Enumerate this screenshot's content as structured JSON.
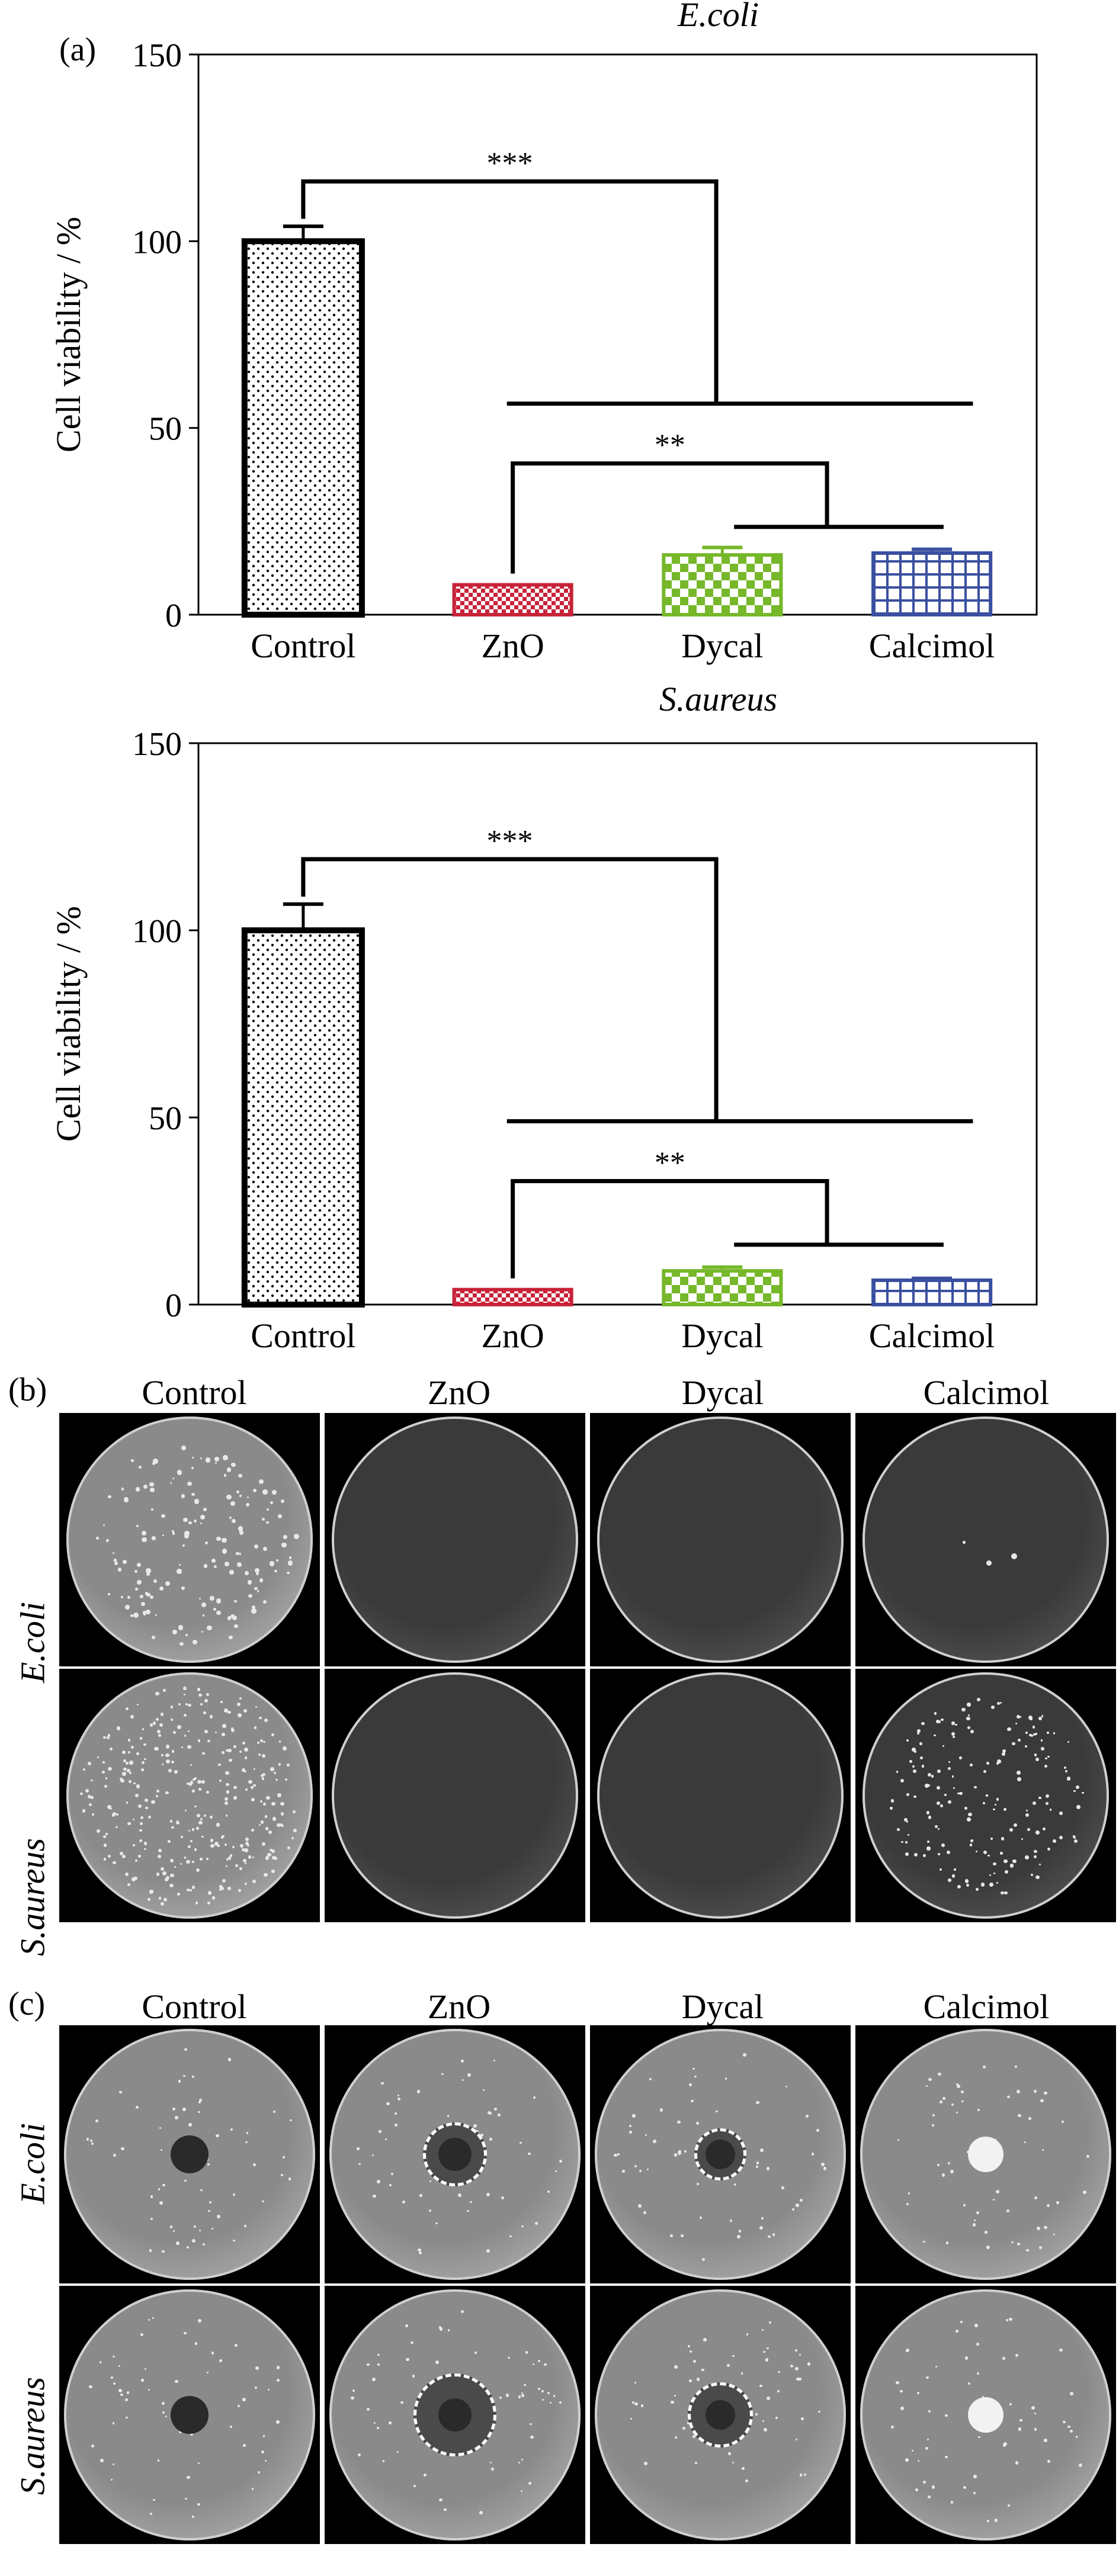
{
  "panels": {
    "a": "(a)",
    "b": "(b)",
    "c": "(c)"
  },
  "chart_data": [
    {
      "type": "bar",
      "title": "E.coli",
      "xlabel": "",
      "ylabel": "Cell viability / %",
      "ylim": [
        0,
        150
      ],
      "yticks": [
        0,
        50,
        100,
        150
      ],
      "categories": [
        "Control",
        "ZnO",
        "Dycal",
        "Calcimol"
      ],
      "values": [
        100,
        8,
        16,
        16.5
      ],
      "errors": [
        4,
        0,
        2,
        1
      ],
      "colors": [
        "#000000",
        "#c8233a",
        "#76b82a",
        "#3a4fa0"
      ],
      "patterns": [
        "dots",
        "checker-fine",
        "checker",
        "grid"
      ],
      "significance": [
        {
          "label": "***",
          "from": "Control",
          "to": [
            "ZnO",
            "Dycal",
            "Calcimol"
          ]
        },
        {
          "label": "**",
          "from": "ZnO",
          "to": [
            "Dycal",
            "Calcimol"
          ]
        }
      ]
    },
    {
      "type": "bar",
      "title": "S.aureus",
      "xlabel": "",
      "ylabel": "Cell viability / %",
      "ylim": [
        0,
        150
      ],
      "yticks": [
        0,
        50,
        100,
        150
      ],
      "categories": [
        "Control",
        "ZnO",
        "Dycal",
        "Calcimol"
      ],
      "values": [
        100,
        4,
        9,
        6.5
      ],
      "errors": [
        7,
        0,
        1,
        0.5
      ],
      "colors": [
        "#000000",
        "#c8233a",
        "#76b82a",
        "#3a4fa0"
      ],
      "patterns": [
        "dots",
        "checker-fine",
        "checker",
        "grid"
      ],
      "significance": [
        {
          "label": "***",
          "from": "Control",
          "to": [
            "ZnO",
            "Dycal",
            "Calcimol"
          ]
        },
        {
          "label": "**",
          "from": "ZnO",
          "to": [
            "Dycal",
            "Calcimol"
          ]
        }
      ]
    }
  ],
  "plates_b": {
    "columns": [
      "Control",
      "ZnO",
      "Dycal",
      "Calcimol"
    ],
    "rows": [
      "E.coli",
      "S.aureus"
    ]
  },
  "plates_c": {
    "columns": [
      "Control",
      "ZnO",
      "Dycal",
      "Calcimol"
    ],
    "rows": [
      "E.coli",
      "S.aureus"
    ]
  }
}
